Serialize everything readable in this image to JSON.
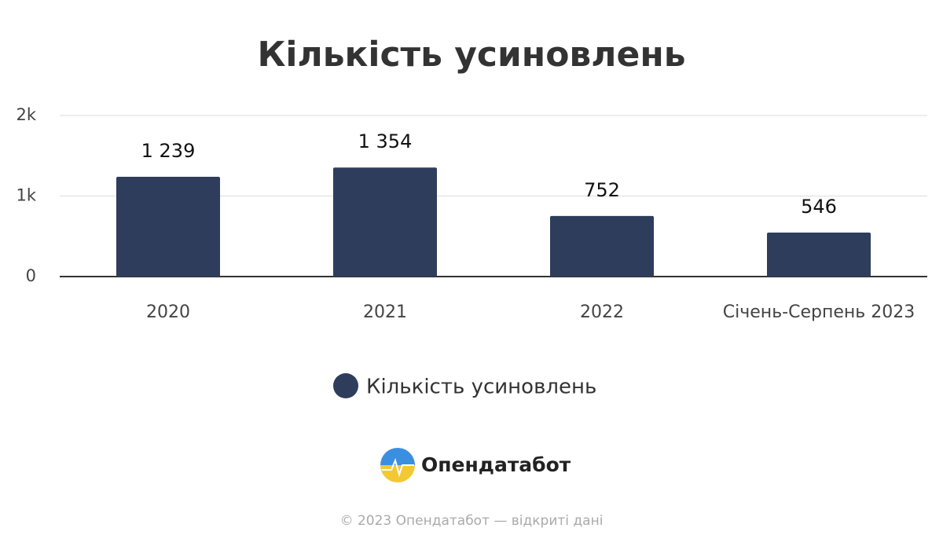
{
  "chart_data": {
    "type": "bar",
    "title": "Кількість усиновлень",
    "categories": [
      "2020",
      "2021",
      "2022",
      "Січень-Серпень 2023"
    ],
    "series": [
      {
        "name": "Кількість усиновлень",
        "color": "#2e3d5c",
        "values": [
          1239,
          1354,
          752,
          546
        ],
        "value_labels": [
          "1 239",
          "1 354",
          "752",
          "546"
        ]
      }
    ],
    "ylim": [
      0,
      2000
    ],
    "yticks": [
      0,
      {
        "value": 1000,
        "label": "1k"
      },
      {
        "value": 2000,
        "label": "2k"
      }
    ],
    "grid": true,
    "legend": "bottom"
  },
  "branding": {
    "logo": "Опендатабот",
    "footer": "© 2023 Опендатабот — відкриті дані"
  }
}
